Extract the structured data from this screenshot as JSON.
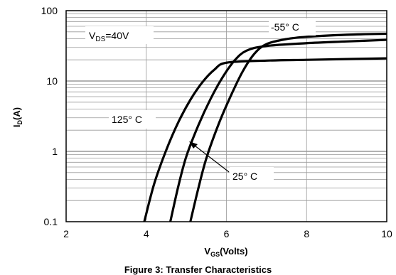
{
  "caption": "Figure 3: Transfer Characteristics",
  "chart_data": {
    "type": "line",
    "xlabel": {
      "main": "V",
      "sub": "GS",
      "rest": "(Volts)"
    },
    "ylabel": {
      "main": "I",
      "sub": "D",
      "rest": "(A)"
    },
    "xlim": [
      2,
      10
    ],
    "ylim": [
      0.1,
      100
    ],
    "yscale": "log",
    "grid": true,
    "x_ticks": [
      {
        "value": 2,
        "label": "2"
      },
      {
        "value": 4,
        "label": "4"
      },
      {
        "value": 6,
        "label": "6"
      },
      {
        "value": 8,
        "label": "8"
      },
      {
        "value": 10,
        "label": "10"
      }
    ],
    "y_ticks": [
      {
        "value": 0.1,
        "label": "0.1"
      },
      {
        "value": 1,
        "label": "1"
      },
      {
        "value": 10,
        "label": "10"
      },
      {
        "value": 100,
        "label": "100"
      }
    ],
    "annotations": {
      "vds": {
        "main": "V",
        "sub": "DS",
        "rest": "=40V"
      },
      "t125": "125° C",
      "t25": "25° C",
      "tm55": "-55° C"
    },
    "series": [
      {
        "x": [
          3.95,
          4.2,
          4.5,
          4.8,
          5.1,
          5.4,
          5.7,
          6.0,
          7.0,
          8.0,
          9.0,
          10.0
        ],
        "y": [
          0.1,
          0.35,
          1.05,
          2.6,
          5.4,
          9.6,
          14.5,
          18.2,
          19.5,
          20.0,
          20.5,
          21.0
        ]
      },
      {
        "x": [
          4.6,
          4.8,
          5.0,
          5.3,
          5.6,
          5.9,
          6.2,
          6.5,
          7.0,
          8.0,
          9.0,
          10.0
        ],
        "y": [
          0.1,
          0.32,
          0.85,
          2.35,
          5.5,
          11.2,
          19.5,
          27.0,
          31.5,
          34.5,
          36.5,
          38.5
        ]
      },
      {
        "x": [
          5.1,
          5.3,
          5.5,
          5.8,
          6.1,
          6.4,
          6.7,
          7.0,
          7.5,
          8.0,
          9.0,
          10.0
        ],
        "y": [
          0.1,
          0.3,
          0.8,
          2.4,
          6.0,
          13.5,
          24.5,
          33.5,
          39.5,
          42.5,
          45.5,
          47.0
        ]
      }
    ]
  }
}
